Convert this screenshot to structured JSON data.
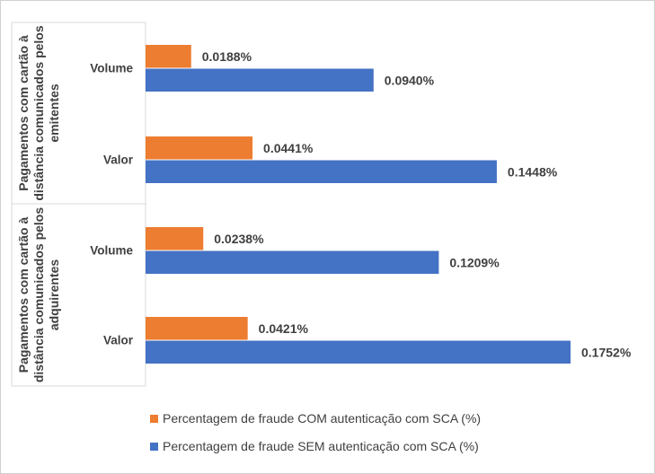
{
  "chart_data": {
    "type": "bar",
    "orientation": "horizontal",
    "title": "",
    "groups": [
      {
        "label": "Pagamentos com cartão à distância comunicados pelos emitentes",
        "lines": [
          "Pagamentos com cartão à",
          "distância comunicados pelos",
          "emitentes"
        ],
        "categories": [
          "Volume",
          "Valor"
        ]
      },
      {
        "label": "Pagamentos com cartão à distância comunicados pelos adquirentes",
        "lines": [
          "Pagamentos com cartão à",
          "distância comunicados pelos",
          "adquirentes"
        ],
        "categories": [
          "Volume",
          "Valor"
        ]
      }
    ],
    "series": [
      {
        "name": "Percentagem de fraude COM autenticação com SCA (%)",
        "color": "#ED7D31",
        "values": [
          0.0188,
          0.0441,
          0.0238,
          0.0421
        ],
        "labels": [
          "0.0188%",
          "0.0441%",
          "0.0238%",
          "0.0421%"
        ]
      },
      {
        "name": "Percentagem de fraude SEM autenticação com SCA (%)",
        "color": "#4472C4",
        "values": [
          0.094,
          0.1448,
          0.1209,
          0.1752
        ],
        "labels": [
          "0.0940%",
          "0.1448%",
          "0.1209%",
          "0.1752%"
        ]
      }
    ],
    "xlim": [
      0,
      0.1752
    ],
    "legend": "bottom",
    "grid": false
  }
}
